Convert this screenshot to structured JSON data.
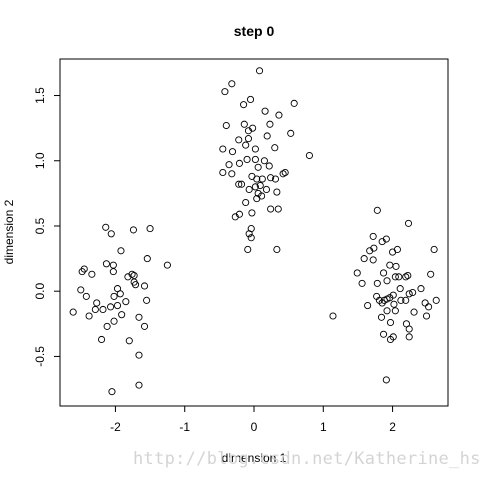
{
  "chart_data": {
    "type": "scatter",
    "title": "step 0",
    "xlabel": "dimension 1",
    "ylabel": "dimension 2",
    "xlim": [
      -2.8,
      2.8
    ],
    "ylim": [
      -0.88,
      1.78
    ],
    "xticks": [
      -2,
      -1,
      0,
      1,
      2
    ],
    "yticks": [
      -0.5,
      0.0,
      0.5,
      1.0,
      1.5
    ],
    "ytick_labels": [
      "-0.5",
      "0.0",
      "0.5",
      "1.0",
      "1.5"
    ],
    "grid": false,
    "legend": "none",
    "marker": "open-circle",
    "points": [
      [
        0.08,
        1.69
      ],
      [
        -0.32,
        1.59
      ],
      [
        -0.42,
        1.53
      ],
      [
        -0.05,
        1.47
      ],
      [
        -0.15,
        1.43
      ],
      [
        0.58,
        1.44
      ],
      [
        0.16,
        1.38
      ],
      [
        -0.4,
        1.27
      ],
      [
        -0.14,
        1.28
      ],
      [
        -0.08,
        1.23
      ],
      [
        -0.02,
        1.25
      ],
      [
        0.23,
        1.28
      ],
      [
        0.36,
        1.35
      ],
      [
        0.53,
        1.21
      ],
      [
        0.19,
        1.19
      ],
      [
        -0.22,
        1.16
      ],
      [
        -0.08,
        1.17
      ],
      [
        -0.45,
        1.09
      ],
      [
        -0.31,
        1.07
      ],
      [
        -0.12,
        1.12
      ],
      [
        0.02,
        1.09
      ],
      [
        0.3,
        1.1
      ],
      [
        0.8,
        1.04
      ],
      [
        -0.21,
        0.98
      ],
      [
        -0.1,
        1.01
      ],
      [
        0.02,
        1.01
      ],
      [
        0.15,
        1.0
      ],
      [
        -0.36,
        0.97
      ],
      [
        0.06,
        0.95
      ],
      [
        0.22,
        0.96
      ],
      [
        -0.45,
        0.91
      ],
      [
        -0.32,
        0.9
      ],
      [
        -0.03,
        0.88
      ],
      [
        0.04,
        0.86
      ],
      [
        0.12,
        0.86
      ],
      [
        0.31,
        0.86
      ],
      [
        0.42,
        0.9
      ],
      [
        0.45,
        0.91
      ],
      [
        0.24,
        0.87
      ],
      [
        -0.22,
        0.82
      ],
      [
        -0.18,
        0.82
      ],
      [
        0.02,
        0.8
      ],
      [
        0.09,
        0.81
      ],
      [
        -0.07,
        0.78
      ],
      [
        0.18,
        0.78
      ],
      [
        0.06,
        0.75
      ],
      [
        0.33,
        0.76
      ],
      [
        0.11,
        0.73
      ],
      [
        0.04,
        0.71
      ],
      [
        -0.12,
        0.68
      ],
      [
        0.24,
        0.63
      ],
      [
        -0.03,
        0.6
      ],
      [
        0.35,
        0.63
      ],
      [
        -0.27,
        0.57
      ],
      [
        -0.21,
        0.59
      ],
      [
        -0.07,
        0.44
      ],
      [
        -0.04,
        0.48
      ],
      [
        -0.04,
        0.41
      ],
      [
        -0.09,
        0.32
      ],
      [
        0.33,
        0.32
      ],
      [
        -1.74,
        0.47
      ],
      [
        -2.14,
        0.49
      ],
      [
        -2.06,
        0.44
      ],
      [
        -1.5,
        0.48
      ],
      [
        -1.92,
        0.31
      ],
      [
        -1.54,
        0.25
      ],
      [
        -1.25,
        0.2
      ],
      [
        -2.13,
        0.21
      ],
      [
        -2.03,
        0.2
      ],
      [
        -2.45,
        0.17
      ],
      [
        -2.48,
        0.15
      ],
      [
        -2.03,
        0.15
      ],
      [
        -2.34,
        0.13
      ],
      [
        -1.76,
        0.13
      ],
      [
        -1.73,
        0.12
      ],
      [
        -1.82,
        0.11
      ],
      [
        -1.73,
        0.07
      ],
      [
        -1.71,
        0.05
      ],
      [
        -2.5,
        0.01
      ],
      [
        -1.97,
        0.02
      ],
      [
        -1.58,
        0.04
      ],
      [
        -1.93,
        -0.02
      ],
      [
        -2.42,
        -0.04
      ],
      [
        -2.02,
        -0.04
      ],
      [
        -1.55,
        -0.07
      ],
      [
        -2.27,
        -0.09
      ],
      [
        -1.85,
        -0.08
      ],
      [
        -1.97,
        -0.11
      ],
      [
        -2.07,
        -0.12
      ],
      [
        -2.18,
        -0.14
      ],
      [
        -2.61,
        -0.16
      ],
      [
        -2.38,
        -0.19
      ],
      [
        -1.91,
        -0.18
      ],
      [
        -2.29,
        -0.14
      ],
      [
        -1.66,
        -0.2
      ],
      [
        -2.02,
        -0.23
      ],
      [
        -2.12,
        -0.27
      ],
      [
        -1.58,
        -0.27
      ],
      [
        -2.2,
        -0.37
      ],
      [
        -1.8,
        -0.38
      ],
      [
        -1.66,
        -0.49
      ],
      [
        -1.66,
        -0.72
      ],
      [
        -2.05,
        -0.77
      ],
      [
        1.78,
        0.62
      ],
      [
        2.23,
        0.52
      ],
      [
        1.91,
        0.4
      ],
      [
        1.72,
        0.42
      ],
      [
        1.85,
        0.38
      ],
      [
        1.73,
        0.33
      ],
      [
        1.67,
        0.31
      ],
      [
        2.6,
        0.32
      ],
      [
        2.0,
        0.3
      ],
      [
        2.07,
        0.32
      ],
      [
        1.59,
        0.25
      ],
      [
        1.72,
        0.24
      ],
      [
        1.96,
        0.2
      ],
      [
        2.05,
        0.19
      ],
      [
        1.49,
        0.14
      ],
      [
        1.87,
        0.14
      ],
      [
        2.04,
        0.11
      ],
      [
        2.09,
        0.11
      ],
      [
        2.22,
        0.12
      ],
      [
        2.19,
        0.11
      ],
      [
        2.55,
        0.13
      ],
      [
        1.92,
        0.08
      ],
      [
        1.56,
        0.06
      ],
      [
        1.78,
        0.06
      ],
      [
        2.11,
        0.02
      ],
      [
        2.41,
        0.02
      ],
      [
        2.29,
        -0.01
      ],
      [
        2.01,
        -0.03
      ],
      [
        2.24,
        -0.02
      ],
      [
        1.77,
        -0.04
      ],
      [
        1.96,
        -0.05
      ],
      [
        1.92,
        -0.06
      ],
      [
        1.88,
        -0.07
      ],
      [
        1.81,
        -0.07
      ],
      [
        2.19,
        -0.07
      ],
      [
        1.85,
        -0.09
      ],
      [
        2.12,
        -0.07
      ],
      [
        2.02,
        -0.1
      ],
      [
        2.47,
        -0.09
      ],
      [
        2.52,
        -0.12
      ],
      [
        2.63,
        -0.07
      ],
      [
        1.64,
        -0.11
      ],
      [
        1.92,
        -0.15
      ],
      [
        2.04,
        -0.15
      ],
      [
        2.31,
        -0.16
      ],
      [
        1.14,
        -0.19
      ],
      [
        1.84,
        -0.2
      ],
      [
        2.49,
        -0.19
      ],
      [
        1.97,
        -0.24
      ],
      [
        2.2,
        -0.25
      ],
      [
        2.24,
        -0.29
      ],
      [
        1.87,
        -0.33
      ],
      [
        2.01,
        -0.35
      ],
      [
        1.97,
        -0.37
      ],
      [
        2.24,
        -0.35
      ],
      [
        1.91,
        -0.68
      ]
    ]
  },
  "watermark_text": "http://blog.csdn.net/Katherine_hsr"
}
